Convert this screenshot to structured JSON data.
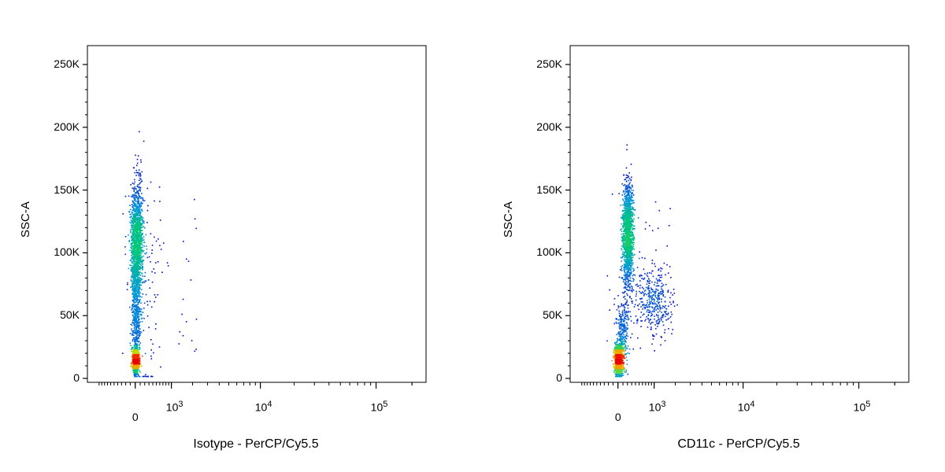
{
  "chart_data": [
    {
      "type": "scatter",
      "title": "",
      "xlabel": "Isotype - PerCP/Cy5.5",
      "ylabel": "SSC-A",
      "x_scale": "biexponential",
      "y_ticks": [
        "0",
        "50K",
        "100K",
        "150K",
        "200K",
        "250K"
      ],
      "y_tick_values": [
        0,
        50000,
        100000,
        150000,
        200000,
        250000
      ],
      "x_ticks": [
        {
          "base": "0",
          "exp": ""
        },
        {
          "base": "10",
          "exp": "3"
        },
        {
          "base": "10",
          "exp": "4"
        },
        {
          "base": "10",
          "exp": "5"
        }
      ],
      "x_tick_values": [
        0,
        1000,
        10000,
        100000
      ],
      "ylim": [
        0,
        262144
      ],
      "grid": false,
      "coloring": "density (blue → green → yellow → red)",
      "populations": [
        {
          "x": 0,
          "y": 15000,
          "x_spread": 30,
          "y_spread": 5000,
          "count": 1100
        },
        {
          "x": 20,
          "y": 110000,
          "x_spread": 60,
          "y_spread": 22000,
          "count": 1500
        },
        {
          "x": 10,
          "y": 55000,
          "x_spread": 45,
          "y_spread": 20000,
          "count": 500
        },
        {
          "x": 250,
          "y": 60000,
          "x_spread": 200,
          "y_spread": 50000,
          "count": 100
        }
      ]
    },
    {
      "type": "scatter",
      "title": "",
      "xlabel": "CD11c - PerCP/Cy5.5",
      "ylabel": "SSC-A",
      "x_scale": "biexponential",
      "y_ticks": [
        "0",
        "50K",
        "100K",
        "150K",
        "200K",
        "250K"
      ],
      "y_tick_values": [
        0,
        50000,
        100000,
        150000,
        200000,
        250000
      ],
      "x_ticks": [
        {
          "base": "0",
          "exp": ""
        },
        {
          "base": "10",
          "exp": "3"
        },
        {
          "base": "10",
          "exp": "4"
        },
        {
          "base": "10",
          "exp": "5"
        }
      ],
      "x_tick_values": [
        0,
        1000,
        10000,
        100000
      ],
      "ylim": [
        0,
        262144
      ],
      "grid": false,
      "coloring": "density (blue → green → yellow → red)",
      "populations": [
        {
          "x": 0,
          "y": 15000,
          "x_spread": 35,
          "y_spread": 6000,
          "count": 1300
        },
        {
          "x": 200,
          "y": 115000,
          "x_spread": 60,
          "y_spread": 20000,
          "count": 1500
        },
        {
          "x": 900,
          "y": 62000,
          "x_spread": 400,
          "y_spread": 13000,
          "count": 400
        },
        {
          "x": 80,
          "y": 35000,
          "x_spread": 60,
          "y_spread": 15000,
          "count": 300
        }
      ]
    }
  ]
}
